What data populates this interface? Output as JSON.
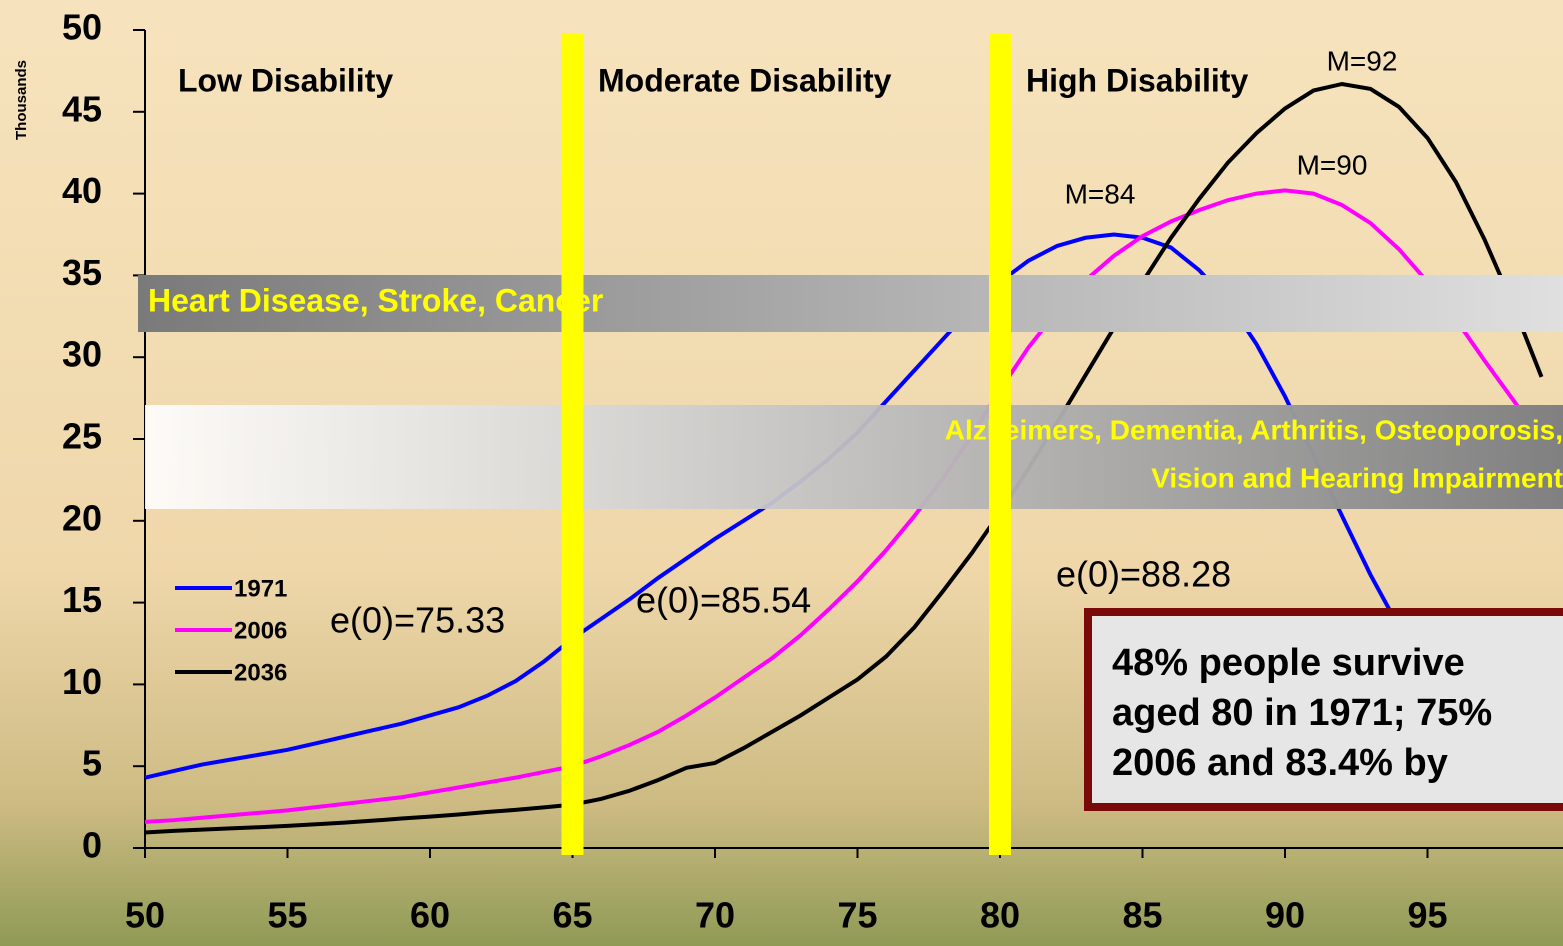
{
  "chart_data": {
    "type": "line",
    "y_label": "Thousands",
    "x": [
      50,
      51,
      52,
      53,
      54,
      55,
      56,
      57,
      58,
      59,
      60,
      61,
      62,
      63,
      64,
      65,
      66,
      67,
      68,
      69,
      70,
      71,
      72,
      73,
      74,
      75,
      76,
      77,
      78,
      79,
      80,
      81,
      82,
      83,
      84,
      85,
      86,
      87,
      88,
      89,
      90,
      91,
      92,
      93,
      94,
      95,
      96,
      97,
      98,
      99
    ],
    "series": [
      {
        "name": "1971",
        "color": "#0000ff",
        "values": [
          4.3,
          4.7,
          5.1,
          5.4,
          5.7,
          6.0,
          6.4,
          6.8,
          7.2,
          7.6,
          8.1,
          8.6,
          9.3,
          10.2,
          11.4,
          12.8,
          14.0,
          15.2,
          16.5,
          17.7,
          18.9,
          20.0,
          21.1,
          22.4,
          23.8,
          25.4,
          27.3,
          29.2,
          31.1,
          33.0,
          34.6,
          35.9,
          36.8,
          37.3,
          37.5,
          37.3,
          36.7,
          35.3,
          33.4,
          30.8,
          27.6,
          24.0,
          20.3,
          16.7,
          13.5,
          null,
          null,
          null,
          null,
          null
        ]
      },
      {
        "name": "2006",
        "color": "#ff00ff",
        "values": [
          1.6,
          1.7,
          1.85,
          2.0,
          2.15,
          2.3,
          2.5,
          2.7,
          2.9,
          3.1,
          3.4,
          3.7,
          4.0,
          4.3,
          4.65,
          5.0,
          5.6,
          6.3,
          7.1,
          8.1,
          9.2,
          10.4,
          11.6,
          13.0,
          14.6,
          16.3,
          18.2,
          20.3,
          22.6,
          25.2,
          28.0,
          30.6,
          32.8,
          34.7,
          36.2,
          37.4,
          38.3,
          39.0,
          39.6,
          40.0,
          40.2,
          40.0,
          39.3,
          38.2,
          36.6,
          34.6,
          32.3,
          29.8,
          27.4,
          25.0
        ]
      },
      {
        "name": "2036",
        "color": "#000000",
        "values": [
          0.95,
          1.05,
          1.12,
          1.2,
          1.27,
          1.35,
          1.45,
          1.55,
          1.67,
          1.8,
          1.92,
          2.05,
          2.2,
          2.33,
          2.48,
          2.65,
          3.0,
          3.5,
          4.15,
          4.9,
          5.2,
          6.1,
          7.1,
          8.1,
          9.2,
          10.3,
          11.7,
          13.5,
          15.7,
          18.0,
          20.5,
          23.2,
          26.0,
          28.9,
          31.8,
          34.6,
          37.3,
          39.7,
          41.9,
          43.7,
          45.2,
          46.3,
          46.7,
          46.4,
          45.3,
          43.4,
          40.7,
          37.2,
          33.2,
          28.8
        ]
      }
    ],
    "xlim": [
      50,
      100
    ],
    "xticks": [
      50,
      55,
      60,
      65,
      70,
      75,
      80,
      85,
      90,
      95
    ],
    "ylim": [
      0,
      50
    ],
    "yticks": [
      0,
      5,
      10,
      15,
      20,
      25,
      30,
      35,
      40,
      45,
      50
    ],
    "dividers": [
      65,
      80
    ],
    "divider_color": "#ffff00",
    "regions": [
      "Low Disability",
      "Moderate Disability",
      "High Disability"
    ],
    "bands": [
      "Heart Disease, Stroke, Cancer",
      "Alzheimers, Dementia, Arthritis, Osteoporosis,",
      "Vision and Hearing Impairment"
    ],
    "peaks": [
      "M=84",
      "M=90",
      "M=92"
    ],
    "life_expectancy": [
      "e(0)=75.33",
      "e(0)=85.54",
      "e(0)=88.28"
    ],
    "note": [
      "48% people survive",
      "aged 80 in 1971; 75%",
      "2006 and  83.4% by"
    ]
  }
}
